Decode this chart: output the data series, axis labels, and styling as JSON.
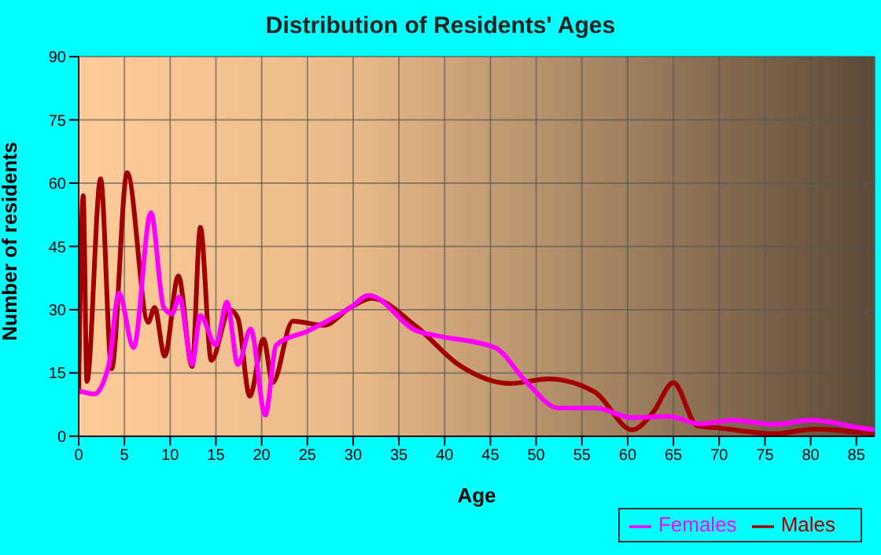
{
  "chart_data": {
    "type": "line",
    "title": "Distribution of Residents' Ages",
    "xlabel": "Age",
    "ylabel": "Number of residents",
    "xlim": [
      0,
      87
    ],
    "xticks": [
      0,
      5,
      10,
      15,
      20,
      25,
      30,
      35,
      40,
      45,
      50,
      55,
      60,
      65,
      70,
      75,
      80,
      85
    ],
    "ylim": [
      0,
      90
    ],
    "yticks": [
      0,
      15,
      30,
      45,
      60,
      75,
      90
    ],
    "grid": true,
    "legend": "bottom right",
    "marker": "none",
    "line_style": "solid",
    "series": [
      {
        "name": "Males",
        "color": "#a00000",
        "x": [
          0,
          0.5,
          0.9,
          2.4,
          3.6,
          5.3,
          7.6,
          8.3,
          9.4,
          10.9,
          12.4,
          13.3,
          14.5,
          16.5,
          17.4,
          18.7,
          20.2,
          21.2,
          23.4,
          26.8,
          29.7,
          32,
          36.9,
          41.5,
          47.2,
          51.3,
          56.4,
          60.5,
          62.8,
          65,
          67.6,
          70.2,
          76,
          80.6,
          85.5,
          87
        ],
        "values": [
          10,
          57,
          13,
          61,
          16,
          62.5,
          27,
          30.5,
          19,
          38,
          16.5,
          49.5,
          18,
          30,
          28,
          9.5,
          23,
          12.7,
          27.3,
          26.3,
          30.5,
          32.7,
          26,
          17,
          12.5,
          13.6,
          10.5,
          1.5,
          5.7,
          12.7,
          2.5,
          1.9,
          0.6,
          1.7,
          0.9,
          0.7
        ]
      },
      {
        "name": "Females",
        "color": "#ff00ff",
        "x": [
          0,
          1.7,
          3.3,
          4.4,
          6,
          7.9,
          9.3,
          10.2,
          11,
          12.4,
          13.3,
          15,
          16.2,
          17.4,
          18.8,
          20.4,
          21.6,
          25.1,
          29.7,
          31.7,
          36.9,
          39.2,
          45.5,
          49,
          52.4,
          56.4,
          60.5,
          64.5,
          67.9,
          71.4,
          76,
          80,
          85.7,
          87
        ],
        "values": [
          10.8,
          10,
          17,
          34,
          21,
          53,
          30.5,
          29,
          33,
          17,
          28.6,
          21.6,
          31.8,
          17,
          25.4,
          5,
          21.6,
          25,
          30.5,
          33.4,
          25,
          23.8,
          21,
          12.7,
          6.7,
          6.7,
          4.4,
          4.7,
          2.9,
          3.8,
          2.8,
          3.8,
          1.9,
          1.5
        ]
      }
    ]
  }
}
